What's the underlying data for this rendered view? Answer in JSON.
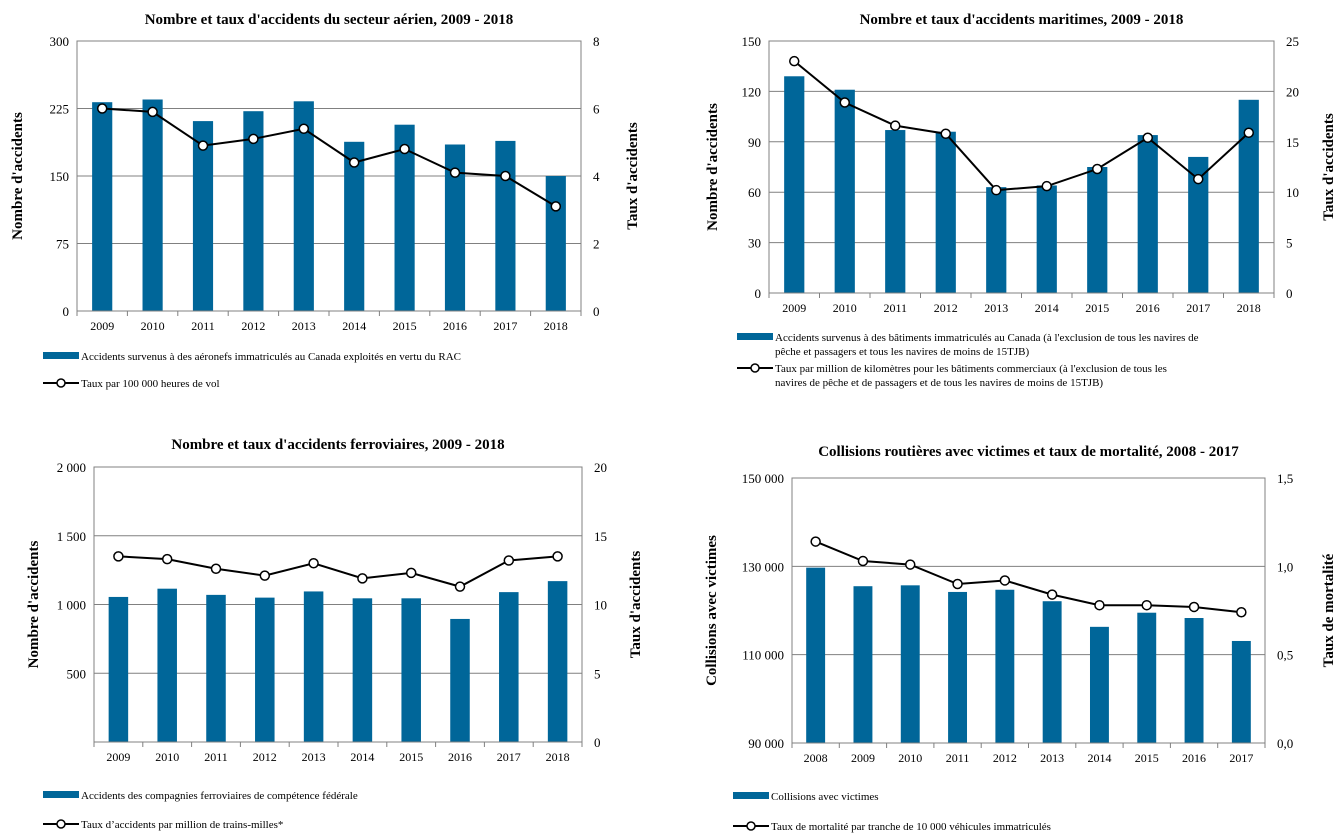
{
  "colors": {
    "bar": "#006699",
    "line": "#000000",
    "marker_fill": "#ffffff",
    "grid": "#808080",
    "frame": "#808080"
  },
  "chart_data": [
    {
      "type": "bar",
      "title": "Nombre et taux d'accidents du secteur aérien, 2009 - 2018",
      "ylabel": "Nombre d'accidents",
      "y2label": "Taux d'accidents",
      "categories": [
        "2009",
        "2010",
        "2011",
        "2012",
        "2013",
        "2014",
        "2015",
        "2016",
        "2017",
        "2018"
      ],
      "ylim": [
        0,
        300
      ],
      "yticks": [
        0,
        75,
        150,
        225,
        300
      ],
      "yticklabels": [
        "0",
        "75",
        "150",
        "225",
        "300"
      ],
      "y2lim": [
        0,
        8
      ],
      "y2ticks": [
        0,
        2,
        4,
        6,
        8
      ],
      "y2ticklabels": [
        "0",
        "2",
        "4",
        "6",
        "8"
      ],
      "grid": true,
      "series": [
        {
          "name": "Accidents survenus à des aéronefs immatriculés au Canada exploités en vertu du RAC",
          "kind": "bar",
          "axis": "left",
          "values": [
            232,
            235,
            211,
            222,
            233,
            188,
            207,
            185,
            189,
            150
          ]
        },
        {
          "name": "Taux par 100 000 heures de vol",
          "kind": "line",
          "axis": "right",
          "values": [
            6.0,
            5.9,
            4.9,
            5.1,
            5.4,
            4.4,
            4.8,
            4.1,
            4.0,
            3.1
          ]
        }
      ],
      "legend_lines": [
        [
          "Accidents survenus à des aéronefs immatriculés au Canada exploités en vertu du RAC"
        ],
        [
          "Taux par 100 000 heures de vol"
        ]
      ]
    },
    {
      "type": "bar",
      "title": "Nombre et taux d'accidents maritimes, 2009 - 2018",
      "ylabel": "Nombre d'accidents",
      "y2label": "Taux d'accidents",
      "categories": [
        "2009",
        "2010",
        "2011",
        "2012",
        "2013",
        "2014",
        "2015",
        "2016",
        "2017",
        "2018"
      ],
      "ylim": [
        0,
        150
      ],
      "yticks": [
        0,
        30,
        60,
        90,
        120,
        150
      ],
      "yticklabels": [
        "0",
        "30",
        "60",
        "90",
        "120",
        "150"
      ],
      "y2lim": [
        0,
        25
      ],
      "y2ticks": [
        0,
        5,
        10,
        15,
        20,
        25
      ],
      "y2ticklabels": [
        "0",
        "5",
        "10",
        "15",
        "20",
        "25"
      ],
      "grid": true,
      "series": [
        {
          "name": "Accidents survenus à des bâtiments immatriculés au Canada (à l'exclusion de tous les navires de pêche et passagers et tous les navires de moins de 15TJB)",
          "kind": "bar",
          "axis": "left",
          "values": [
            129,
            121,
            97,
            96,
            63,
            64,
            75,
            94,
            81,
            115
          ]
        },
        {
          "name": "Taux par million de kilomètres pour les bâtiments commerciaux (à l'exclusion de tous les navires de pêche et de passagers et de tous les navires de moins de 15TJB)",
          "kind": "line",
          "axis": "right",
          "values": [
            23.0,
            18.9,
            16.6,
            15.8,
            10.2,
            10.6,
            12.3,
            15.4,
            11.3,
            15.9
          ]
        }
      ],
      "legend_lines": [
        [
          "Accidents survenus à des bâtiments immatriculés au Canada (à l'exclusion de tous les navires de",
          "pêche et passagers et tous les navires de moins de 15TJB)"
        ],
        [
          "Taux par million de kilomètres pour les bâtiments commerciaux (à l'exclusion de tous les",
          "navires de pêche et de passagers et de tous les navires de moins de 15TJB)"
        ]
      ]
    },
    {
      "type": "bar",
      "title": "Nombre et taux d'accidents ferroviaires, 2009 - 2018",
      "ylabel": "Nombre d'accidents",
      "y2label": "Taux d'accidents",
      "categories": [
        "2009",
        "2010",
        "2011",
        "2012",
        "2013",
        "2014",
        "2015",
        "2016",
        "2017",
        "2018"
      ],
      "ylim": [
        0,
        2000
      ],
      "yticks": [
        500,
        1000,
        1500,
        2000
      ],
      "yticklabels": [
        "500",
        "1 000",
        "1 500",
        "2 000"
      ],
      "y2lim": [
        0,
        20
      ],
      "y2ticks": [
        0,
        5,
        10,
        15,
        20
      ],
      "y2ticklabels": [
        "0",
        "5",
        "10",
        "15",
        "20"
      ],
      "grid": true,
      "series": [
        {
          "name": "Accidents des compagnies ferroviaires de compétence fédérale",
          "kind": "bar",
          "axis": "left",
          "values": [
            1055,
            1115,
            1070,
            1050,
            1095,
            1045,
            1045,
            895,
            1090,
            1170
          ]
        },
        {
          "name": "Taux d’accidents par million de trains-milles*",
          "kind": "line",
          "axis": "right",
          "values": [
            13.5,
            13.3,
            12.6,
            12.1,
            13.0,
            11.9,
            12.3,
            11.3,
            13.2,
            13.5
          ]
        }
      ],
      "legend_lines": [
        [
          "Accidents des compagnies ferroviaires de compétence fédérale"
        ],
        [
          "Taux d’accidents par million de trains-milles*"
        ]
      ]
    },
    {
      "type": "bar",
      "title": "Collisions routières avec victimes et taux de mortalité, 2008 - 2017",
      "ylabel": "Collisions avec victimes",
      "y2label": "Taux de mortalité",
      "categories": [
        "2008",
        "2009",
        "2010",
        "2011",
        "2012",
        "2013",
        "2014",
        "2015",
        "2016",
        "2017"
      ],
      "ylim": [
        90000,
        150000
      ],
      "yticks": [
        90000,
        110000,
        130000,
        150000
      ],
      "yticklabels": [
        "90 000",
        "110 000",
        "130 000",
        "150 000"
      ],
      "y2lim": [
        0,
        1.5
      ],
      "y2ticks": [
        0,
        0.5,
        1.0,
        1.5
      ],
      "y2ticklabels": [
        "0,0",
        "0,5",
        "1,0",
        "1,5"
      ],
      "grid": true,
      "series": [
        {
          "name": "Collisions avec victimes",
          "kind": "bar",
          "axis": "left",
          "values": [
            129700,
            125500,
            125700,
            124200,
            124700,
            122100,
            116300,
            119500,
            118300,
            113100
          ]
        },
        {
          "name": "Taux de mortalité par tranche de 10 000 véhicules immatriculés",
          "kind": "line",
          "axis": "right",
          "values": [
            1.14,
            1.03,
            1.01,
            0.9,
            0.92,
            0.84,
            0.78,
            0.78,
            0.77,
            0.74
          ]
        }
      ],
      "legend_lines": [
        [
          "Collisions avec victimes"
        ],
        [
          "Taux de mortalité par tranche de 10 000 véhicules immatriculés"
        ]
      ]
    }
  ]
}
